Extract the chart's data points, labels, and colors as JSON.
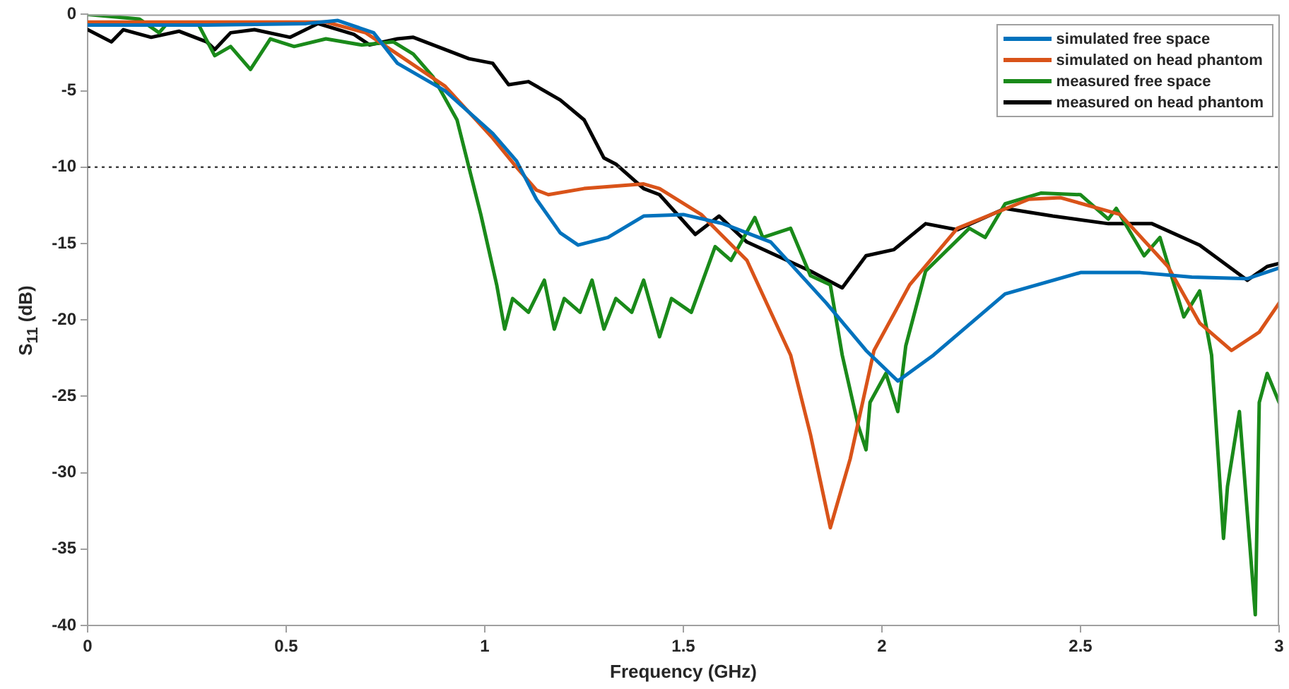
{
  "chart_data": {
    "type": "line",
    "xlabel": "Frequency (GHz)",
    "ylabel": "S$_{11}$ (dB)",
    "xlim": [
      0,
      3
    ],
    "xticks": [
      0,
      0.5,
      1,
      1.5,
      2,
      2.5,
      3
    ],
    "ylim": [
      -40,
      0
    ],
    "yticks": [
      -40,
      -35,
      -30,
      -25,
      -20,
      -15,
      -10,
      -5,
      0
    ],
    "grid": false,
    "legend": "top right",
    "line_style": "solid",
    "marker": "none",
    "ref_lines": [
      {
        "axis": "y",
        "value": -10,
        "color": "#404040",
        "line_style": "dotted"
      }
    ],
    "series": [
      {
        "name": "simulated free space",
        "color": "#0072bd",
        "x": [
          0,
          0.3,
          0.55,
          0.63,
          0.72,
          0.78,
          0.9,
          1.02,
          1.08,
          1.13,
          1.19,
          1.235,
          1.31,
          1.4,
          1.5,
          1.6,
          1.72,
          1.86,
          1.96,
          2.04,
          2.13,
          2.31,
          2.5,
          2.65,
          2.78,
          2.92,
          3.0
        ],
        "values": [
          -0.7,
          -0.7,
          -0.6,
          -0.4,
          -1.2,
          -3.2,
          -5.0,
          -7.8,
          -9.6,
          -12.1,
          -14.3,
          -15.1,
          -14.6,
          -13.2,
          -13.1,
          -13.7,
          -14.9,
          -18.9,
          -22.0,
          -24.0,
          -22.3,
          -18.3,
          -16.9,
          -16.9,
          -17.2,
          -17.3,
          -16.6
        ]
      },
      {
        "name": "simulated on head phantom",
        "color": "#d95319",
        "x": [
          0,
          0.3,
          0.6,
          0.7,
          0.78,
          0.9,
          1.02,
          1.08,
          1.13,
          1.16,
          1.25,
          1.4,
          1.44,
          1.545,
          1.66,
          1.77,
          1.82,
          1.87,
          1.92,
          1.98,
          2.07,
          2.19,
          2.37,
          2.45,
          2.6,
          2.72,
          2.8,
          2.88,
          2.95,
          3.0
        ],
        "values": [
          -0.5,
          -0.5,
          -0.5,
          -1.2,
          -2.6,
          -4.7,
          -8.1,
          -10.0,
          -11.5,
          -11.8,
          -11.4,
          -11.1,
          -11.4,
          -13.1,
          -16.1,
          -22.3,
          -27.5,
          -33.6,
          -29.1,
          -22.0,
          -17.7,
          -14.0,
          -12.1,
          -12.0,
          -13.1,
          -16.5,
          -20.2,
          -22.0,
          -20.8,
          -18.9
        ]
      },
      {
        "name": "measured free space",
        "color": "#1a8a1a",
        "x": [
          0,
          0.13,
          0.18,
          0.2,
          0.28,
          0.32,
          0.36,
          0.41,
          0.46,
          0.52,
          0.6,
          0.69,
          0.77,
          0.82,
          0.87,
          0.93,
          0.96,
          0.99,
          1.03,
          1.05,
          1.07,
          1.11,
          1.15,
          1.175,
          1.2,
          1.24,
          1.27,
          1.3,
          1.33,
          1.37,
          1.4,
          1.44,
          1.47,
          1.52,
          1.58,
          1.62,
          1.68,
          1.7,
          1.77,
          1.82,
          1.87,
          1.9,
          1.94,
          1.96,
          1.97,
          2.01,
          2.04,
          2.06,
          2.11,
          2.22,
          2.26,
          2.31,
          2.4,
          2.5,
          2.57,
          2.59,
          2.66,
          2.7,
          2.76,
          2.8,
          2.83,
          2.86,
          2.87,
          2.9,
          2.94,
          2.95,
          2.97,
          3.0
        ],
        "values": [
          0,
          -0.3,
          -1.2,
          -0.6,
          -0.7,
          -2.7,
          -2.1,
          -3.6,
          -1.6,
          -2.1,
          -1.6,
          -2.0,
          -1.8,
          -2.6,
          -4.1,
          -6.9,
          -10.0,
          -13.1,
          -17.7,
          -20.6,
          -18.6,
          -19.5,
          -17.4,
          -20.6,
          -18.6,
          -19.5,
          -17.4,
          -20.6,
          -18.6,
          -19.5,
          -17.4,
          -21.1,
          -18.6,
          -19.5,
          -15.2,
          -16.1,
          -13.3,
          -14.6,
          -14.0,
          -17.1,
          -17.7,
          -22.3,
          -26.9,
          -28.5,
          -25.4,
          -23.5,
          -26.0,
          -21.7,
          -16.8,
          -14.0,
          -14.6,
          -12.4,
          -11.7,
          -11.8,
          -13.4,
          -12.7,
          -15.8,
          -14.6,
          -19.8,
          -18.1,
          -22.3,
          -34.3,
          -30.9,
          -26.0,
          -39.3,
          -25.4,
          -23.5,
          -25.4
        ]
      },
      {
        "name": "measured on head phantom",
        "color": "#000000",
        "x": [
          0,
          0.06,
          0.09,
          0.16,
          0.23,
          0.3,
          0.32,
          0.36,
          0.42,
          0.51,
          0.58,
          0.67,
          0.71,
          0.78,
          0.82,
          0.9,
          0.96,
          1.02,
          1.06,
          1.11,
          1.19,
          1.25,
          1.3,
          1.33,
          1.4,
          1.44,
          1.53,
          1.59,
          1.66,
          1.82,
          1.9,
          1.96,
          2.03,
          2.11,
          2.19,
          2.31,
          2.43,
          2.57,
          2.68,
          2.8,
          2.92,
          2.97,
          3.0
        ],
        "values": [
          -1.0,
          -1.8,
          -1.0,
          -1.5,
          -1.1,
          -1.8,
          -2.3,
          -1.2,
          -1.0,
          -1.5,
          -0.6,
          -1.3,
          -2.0,
          -1.6,
          -1.5,
          -2.3,
          -2.9,
          -3.2,
          -4.6,
          -4.4,
          -5.6,
          -6.9,
          -9.4,
          -9.8,
          -11.4,
          -11.8,
          -14.4,
          -13.2,
          -14.9,
          -16.8,
          -17.9,
          -15.8,
          -15.4,
          -13.7,
          -14.1,
          -12.7,
          -13.2,
          -13.7,
          -13.7,
          -15.1,
          -17.4,
          -16.5,
          -16.3
        ]
      }
    ]
  }
}
